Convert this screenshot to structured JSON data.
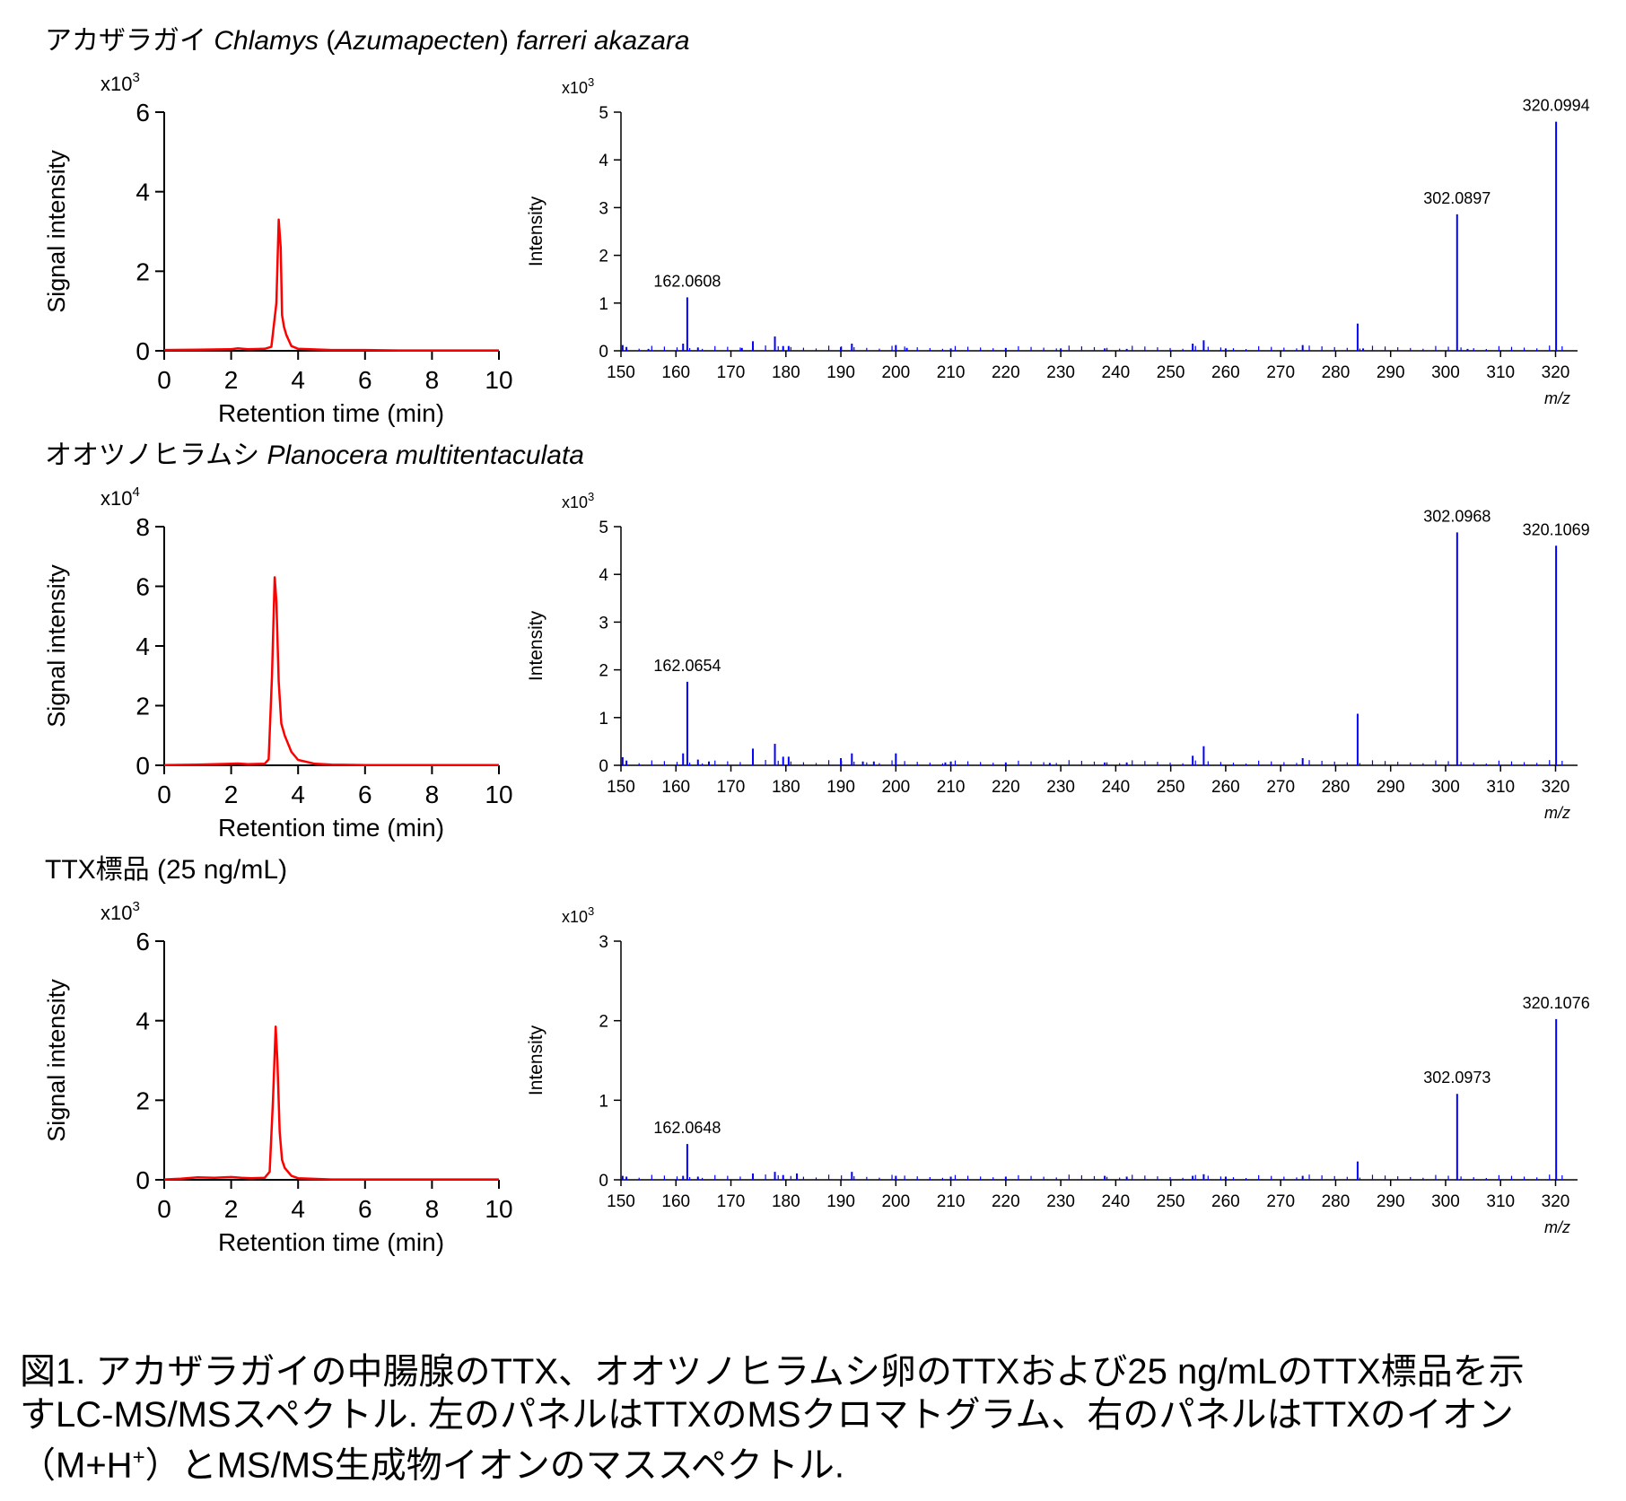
{
  "rows": [
    {
      "title_plain": "アカザラガイ ",
      "title_italic": "Chlamys",
      "title_mid": " (",
      "title_italic2": "Azumapecten",
      "title_mid2": ") ",
      "title_italic3": "farreri akazara",
      "chrom": {
        "multiplier_base": "x10",
        "multiplier_exp": "3",
        "ylabel": "Signal intensity",
        "xlabel": "Retention time (min)"
      },
      "spec": {
        "multiplier_base": "x10",
        "multiplier_exp": "3",
        "ylabel": "Intensity",
        "xlabel": "m/z",
        "peak_labels": [
          "162.0608",
          "302.0897",
          "320.0994"
        ]
      }
    },
    {
      "title_plain": "オオツノヒラムシ ",
      "title_italic": "Planocera multitentaculata",
      "title_mid": "",
      "title_italic2": "",
      "title_mid2": "",
      "title_italic3": "",
      "chrom": {
        "multiplier_base": "x10",
        "multiplier_exp": "4",
        "ylabel": "Signal intensity",
        "xlabel": "Retention time (min)"
      },
      "spec": {
        "multiplier_base": "x10",
        "multiplier_exp": "3",
        "ylabel": "Intensity",
        "xlabel": "m/z",
        "peak_labels": [
          "162.0654",
          "302.0968",
          "320.1069"
        ]
      }
    },
    {
      "title_plain": "TTX標品 (25 ng/mL)",
      "title_italic": "",
      "title_mid": "",
      "title_italic2": "",
      "title_mid2": "",
      "title_italic3": "",
      "chrom": {
        "multiplier_base": "x10",
        "multiplier_exp": "3",
        "ylabel": "Signal intensity",
        "xlabel": "Retention time (min)"
      },
      "spec": {
        "multiplier_base": "x10",
        "multiplier_exp": "3",
        "ylabel": "Intensity",
        "xlabel": "m/z",
        "peak_labels": [
          "162.0648",
          "302.0973",
          "320.1076"
        ]
      }
    }
  ],
  "caption": {
    "line1": "図1.  アカザラガイの中腸腺のTTX、オオツノヒラムシ卵のTTXおよび25 ng/mLのTTX標品を示",
    "line2": "すLC-MS/MSスペクトル.  左のパネルはTTXのMSクロマトグラム、右のパネルはTTXのイオン",
    "line3_pre": "（M+H",
    "line3_sup": "+",
    "line3_post": "）とMS/MS生成物イオンのマススペクトル."
  },
  "colors": {
    "chromatogram": "#ff0000",
    "spectrum": "#0000ff",
    "axis": "#000000"
  },
  "chart_data": [
    {
      "type": "line",
      "panel": "row1-chromatogram",
      "xlabel": "Retention time (min)",
      "ylabel": "Signal intensity",
      "y_multiplier": "x10^3",
      "xlim": [
        0,
        10
      ],
      "ylim": [
        0,
        6
      ],
      "xticks": [
        0,
        2,
        4,
        6,
        8,
        10
      ],
      "yticks": [
        0,
        2,
        4,
        6
      ],
      "x": [
        0,
        1,
        2,
        2.2,
        2.5,
        3.0,
        3.2,
        3.35,
        3.42,
        3.48,
        3.52,
        3.58,
        3.65,
        3.8,
        4.0,
        5,
        6,
        7,
        8,
        9,
        10
      ],
      "y": [
        0.02,
        0.03,
        0.04,
        0.06,
        0.04,
        0.05,
        0.1,
        1.2,
        3.3,
        2.6,
        0.9,
        0.6,
        0.4,
        0.12,
        0.05,
        0.02,
        0.02,
        0.01,
        0.01,
        0.01,
        0.01
      ],
      "color": "#ff0000"
    },
    {
      "type": "bar",
      "panel": "row1-spectrum",
      "xlabel": "m/z",
      "ylabel": "Intensity",
      "y_multiplier": "x10^3",
      "xlim": [
        150,
        324
      ],
      "ylim": [
        0,
        5
      ],
      "xticks": [
        150,
        160,
        170,
        180,
        190,
        200,
        210,
        220,
        230,
        240,
        250,
        260,
        270,
        280,
        290,
        300,
        310,
        320
      ],
      "yticks": [
        0,
        1,
        2,
        3,
        4,
        5
      ],
      "peaks": [
        [
          150.3,
          0.12
        ],
        [
          151,
          0.08
        ],
        [
          155,
          0.04
        ],
        [
          161.3,
          0.15
        ],
        [
          162.06,
          1.12
        ],
        [
          164,
          0.07
        ],
        [
          172,
          0.06
        ],
        [
          174,
          0.2
        ],
        [
          178,
          0.3
        ],
        [
          179.5,
          0.1
        ],
        [
          180.5,
          0.1
        ],
        [
          190,
          0.08
        ],
        [
          192,
          0.15
        ],
        [
          200,
          0.12
        ],
        [
          202,
          0.06
        ],
        [
          210,
          0.05
        ],
        [
          220,
          0.06
        ],
        [
          230,
          0.05
        ],
        [
          238,
          0.05
        ],
        [
          242,
          0.04
        ],
        [
          254,
          0.15
        ],
        [
          256,
          0.22
        ],
        [
          260,
          0.05
        ],
        [
          274,
          0.12
        ],
        [
          284,
          0.57
        ],
        [
          285,
          0.05
        ],
        [
          302.09,
          2.86
        ],
        [
          304,
          0.04
        ],
        [
          320.1,
          4.8
        ]
      ],
      "labels": [
        [
          "162.0608",
          162.06,
          1.12
        ],
        [
          "302.0897",
          302.09,
          2.86
        ],
        [
          "320.0994",
          320.1,
          4.8
        ]
      ],
      "color": "#0000ff"
    },
    {
      "type": "line",
      "panel": "row2-chromatogram",
      "xlabel": "Retention time (min)",
      "ylabel": "Signal intensity",
      "y_multiplier": "x10^4",
      "xlim": [
        0,
        10
      ],
      "ylim": [
        0,
        8
      ],
      "xticks": [
        0,
        2,
        4,
        6,
        8,
        10
      ],
      "yticks": [
        0,
        2,
        4,
        6,
        8
      ],
      "x": [
        0,
        1,
        2,
        2.2,
        2.5,
        3.0,
        3.12,
        3.22,
        3.3,
        3.35,
        3.42,
        3.5,
        3.6,
        3.8,
        4.0,
        4.5,
        5,
        6,
        7,
        8,
        9,
        10
      ],
      "y": [
        0.01,
        0.02,
        0.05,
        0.06,
        0.04,
        0.05,
        0.2,
        3.0,
        6.3,
        5.5,
        2.8,
        1.4,
        1.0,
        0.45,
        0.18,
        0.05,
        0.02,
        0.01,
        0.01,
        0.01,
        0.01,
        0.01
      ],
      "color": "#ff0000"
    },
    {
      "type": "bar",
      "panel": "row2-spectrum",
      "xlabel": "m/z",
      "ylabel": "Intensity",
      "y_multiplier": "x10^3",
      "xlim": [
        150,
        324
      ],
      "ylim": [
        0,
        5
      ],
      "xticks": [
        150,
        160,
        170,
        180,
        190,
        200,
        210,
        220,
        230,
        240,
        250,
        260,
        270,
        280,
        290,
        300,
        310,
        320
      ],
      "yticks": [
        0,
        1,
        2,
        3,
        4,
        5
      ],
      "peaks": [
        [
          150.3,
          0.17
        ],
        [
          151,
          0.1
        ],
        [
          161.3,
          0.25
        ],
        [
          162.07,
          1.75
        ],
        [
          164,
          0.12
        ],
        [
          166,
          0.08
        ],
        [
          174,
          0.35
        ],
        [
          178,
          0.45
        ],
        [
          179.5,
          0.18
        ],
        [
          180.5,
          0.18
        ],
        [
          190,
          0.15
        ],
        [
          192,
          0.25
        ],
        [
          194,
          0.08
        ],
        [
          196,
          0.08
        ],
        [
          200,
          0.25
        ],
        [
          209,
          0.06
        ],
        [
          210,
          0.08
        ],
        [
          220,
          0.06
        ],
        [
          228,
          0.05
        ],
        [
          238,
          0.06
        ],
        [
          242,
          0.06
        ],
        [
          254,
          0.2
        ],
        [
          256,
          0.4
        ],
        [
          274,
          0.15
        ],
        [
          284,
          1.08
        ],
        [
          302.1,
          4.88
        ],
        [
          320.1,
          4.6
        ]
      ],
      "labels": [
        [
          "162.0654",
          162.07,
          1.75
        ],
        [
          "302.0968",
          302.1,
          4.88
        ],
        [
          "320.1069",
          320.1,
          4.6
        ]
      ],
      "color": "#0000ff"
    },
    {
      "type": "line",
      "panel": "row3-chromatogram",
      "xlabel": "Retention time (min)",
      "ylabel": "Signal intensity",
      "y_multiplier": "x10^3",
      "xlim": [
        0,
        10
      ],
      "ylim": [
        0,
        6
      ],
      "xticks": [
        0,
        2,
        4,
        6,
        8,
        10
      ],
      "yticks": [
        0,
        2,
        4,
        6
      ],
      "x": [
        0,
        0.5,
        1,
        1.5,
        2,
        2.3,
        2.6,
        3.0,
        3.15,
        3.25,
        3.33,
        3.38,
        3.45,
        3.52,
        3.6,
        3.8,
        4.0,
        5,
        6,
        7,
        8,
        9,
        10
      ],
      "y": [
        0.01,
        0.03,
        0.06,
        0.05,
        0.07,
        0.05,
        0.04,
        0.05,
        0.2,
        2.0,
        3.85,
        3.0,
        1.2,
        0.5,
        0.3,
        0.1,
        0.04,
        0.01,
        0.01,
        0.01,
        0.01,
        0.01,
        0.01
      ],
      "color": "#ff0000"
    },
    {
      "type": "bar",
      "panel": "row3-spectrum",
      "xlabel": "m/z",
      "ylabel": "Intensity",
      "y_multiplier": "x10^3",
      "xlim": [
        150,
        324
      ],
      "ylim": [
        0,
        3
      ],
      "xticks": [
        150,
        160,
        170,
        180,
        190,
        200,
        210,
        220,
        230,
        240,
        250,
        260,
        270,
        280,
        290,
        300,
        310,
        320
      ],
      "yticks": [
        0,
        1,
        2,
        3
      ],
      "peaks": [
        [
          150.3,
          0.05
        ],
        [
          151,
          0.04
        ],
        [
          161.3,
          0.05
        ],
        [
          162.06,
          0.45
        ],
        [
          164,
          0.04
        ],
        [
          174,
          0.08
        ],
        [
          178,
          0.1
        ],
        [
          179.5,
          0.06
        ],
        [
          182,
          0.08
        ],
        [
          192,
          0.1
        ],
        [
          200,
          0.05
        ],
        [
          210,
          0.04
        ],
        [
          220,
          0.04
        ],
        [
          238,
          0.05
        ],
        [
          242,
          0.04
        ],
        [
          254,
          0.05
        ],
        [
          256,
          0.07
        ],
        [
          260,
          0.04
        ],
        [
          274,
          0.05
        ],
        [
          284,
          0.23
        ],
        [
          302.1,
          1.08
        ],
        [
          320.11,
          2.02
        ]
      ],
      "labels": [
        [
          "162.0648",
          162.06,
          0.45
        ],
        [
          "302.0973",
          302.1,
          1.08
        ],
        [
          "320.1076",
          320.11,
          2.02
        ]
      ],
      "color": "#0000ff"
    }
  ]
}
